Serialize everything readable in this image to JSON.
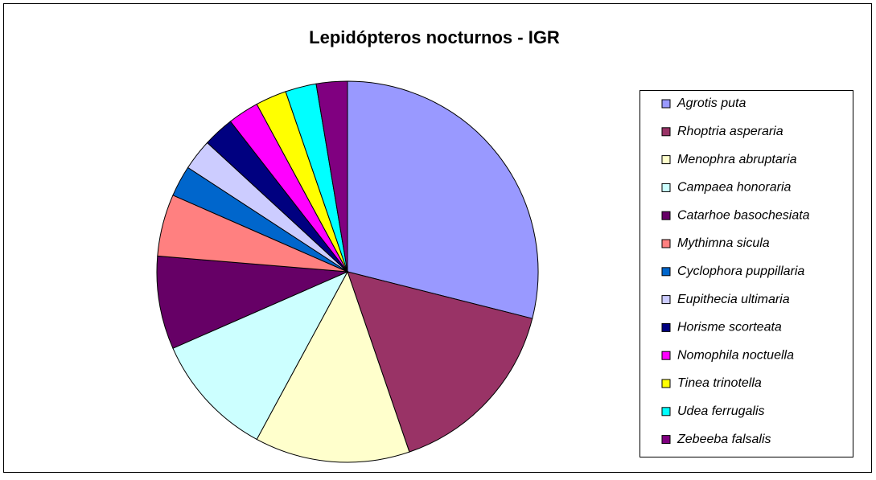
{
  "chart_data": {
    "type": "pie",
    "title": "Lepidópteros nocturnos - IGR",
    "categories": [
      "Agrotis puta",
      "Rhoptria asperaria",
      "Menophra abruptaria",
      "Campaea honoraria",
      "Catarhoe basochesiata",
      "Mythimna sicula",
      "Cyclophora puppillaria",
      "Eupithecia ultimaria",
      "Horisme scorteata",
      "Nomophila noctuella",
      "Tinea trinotella",
      "Udea ferrugalis",
      "Zebeeba falsalis"
    ],
    "values": [
      11,
      6,
      5,
      4,
      3,
      2,
      1,
      1,
      1,
      1,
      1,
      1,
      1
    ],
    "colors": [
      "#9999ff",
      "#993366",
      "#ffffcc",
      "#ccffff",
      "#660066",
      "#ff8080",
      "#0066cc",
      "#ccccff",
      "#000080",
      "#ff00ff",
      "#ffff00",
      "#00ffff",
      "#800080"
    ],
    "legend": "right"
  }
}
